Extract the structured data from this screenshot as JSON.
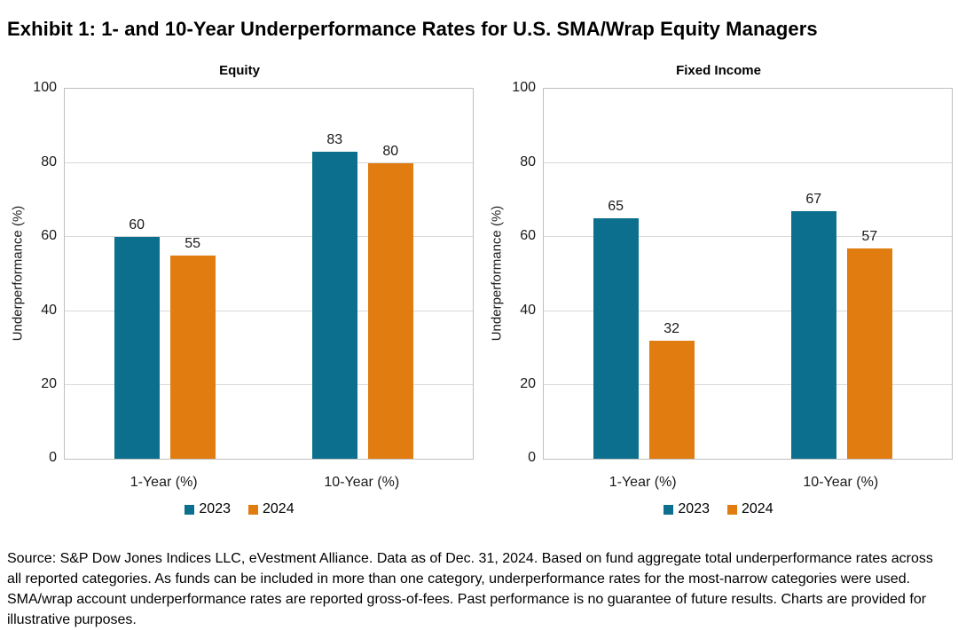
{
  "page_title": "Exhibit 1: 1- and 10-Year Underperformance Rates for U.S. SMA/Wrap Equity Managers",
  "colors": {
    "series_2023": "#0d6f8e",
    "series_2024": "#e07c10",
    "gridline": "#d9d9d9",
    "plot_border": "#bfbfbf",
    "text": "#000000"
  },
  "chart_data": [
    {
      "type": "bar",
      "title": "Equity",
      "categories": [
        "1-Year (%)",
        "10-Year (%)"
      ],
      "series": [
        {
          "name": "2023",
          "color": "#0d6f8e",
          "values": [
            60,
            83
          ]
        },
        {
          "name": "2024",
          "color": "#e07c10",
          "values": [
            55,
            80
          ]
        }
      ],
      "xlabel": "",
      "ylabel": "Underperformance (%)",
      "ylim": [
        0,
        100
      ],
      "yticks": [
        0,
        20,
        40,
        60,
        80,
        100
      ],
      "grid": true,
      "data_labels": true,
      "legend_position": "bottom"
    },
    {
      "type": "bar",
      "title": "Fixed Income",
      "categories": [
        "1-Year (%)",
        "10-Year (%)"
      ],
      "series": [
        {
          "name": "2023",
          "color": "#0d6f8e",
          "values": [
            65,
            67
          ]
        },
        {
          "name": "2024",
          "color": "#e07c10",
          "values": [
            32,
            57
          ]
        }
      ],
      "xlabel": "",
      "ylabel": "Underperformance (%)",
      "ylim": [
        0,
        100
      ],
      "yticks": [
        0,
        20,
        40,
        60,
        80,
        100
      ],
      "grid": true,
      "data_labels": true,
      "legend_position": "bottom"
    }
  ],
  "footnote": "Source: S&P Dow Jones Indices LLC, eVestment Alliance. Data as of Dec. 31, 2024. Based on fund aggregate total underperformance rates across all reported categories. As funds can be included in more than one category, underperformance rates for the most-narrow categories were used. SMA/wrap account underperformance rates are reported gross-of-fees. Past performance is no guarantee of future results. Charts are provided for illustrative purposes."
}
